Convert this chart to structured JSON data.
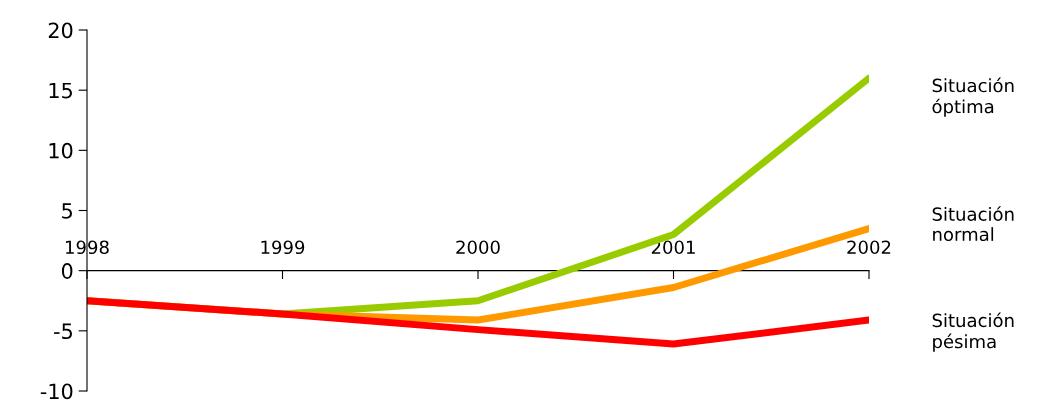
{
  "chart_data": {
    "type": "line",
    "categories": [
      "1998",
      "1999",
      "2000",
      "2001",
      "2002"
    ],
    "series": [
      {
        "name": "Situación\nóptima",
        "color": "#99cc00",
        "values": [
          -2.5,
          -3.6,
          -2.5,
          3.0,
          16.0
        ]
      },
      {
        "name": "Situación\nnormal",
        "color": "#ff9900",
        "values": [
          -2.5,
          -3.6,
          -4.1,
          -1.4,
          3.5
        ]
      },
      {
        "name": "Situación\npésima",
        "color": "#ff0000",
        "values": [
          -2.5,
          -3.6,
          -4.9,
          -6.1,
          -4.1
        ]
      }
    ],
    "ylim": [
      -10,
      20
    ],
    "yticks": [
      {
        "value": -10,
        "label": "-10"
      },
      {
        "value": -5,
        "label": "-5"
      },
      0,
      5,
      10,
      15,
      20
    ],
    "grid": false,
    "legend": false,
    "marker": "none",
    "line_style": "solid"
  }
}
